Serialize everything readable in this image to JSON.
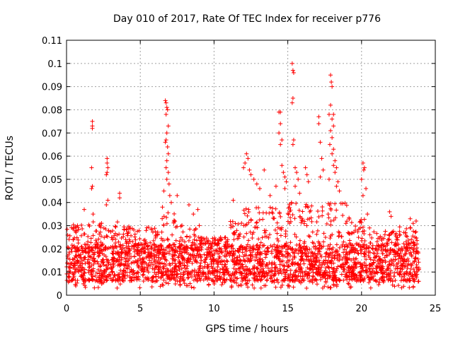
{
  "chart_data": {
    "type": "scatter",
    "title": "Day 010 of 2017, Rate Of TEC Index for receiver p776",
    "xlabel": "GPS time / hours",
    "ylabel": "ROTI / TECUs",
    "xlim": [
      0,
      25
    ],
    "ylim": [
      0,
      0.11
    ],
    "xticks": [
      0,
      5,
      10,
      15,
      20,
      25
    ],
    "xtick_labels": [
      "0",
      "5",
      "10",
      "15",
      "20",
      "25"
    ],
    "yticks": [
      0,
      0.01,
      0.02,
      0.03,
      0.04,
      0.05,
      0.06,
      0.07,
      0.08,
      0.09,
      0.1,
      0.11
    ],
    "ytick_labels": [
      "0",
      "0.01",
      "0.02",
      "0.03",
      "0.04",
      "0.05",
      "0.06",
      "0.07",
      "0.08",
      "0.09",
      "0.1",
      "0.11"
    ],
    "grid": true,
    "marker": "+",
    "color": "#ff0000",
    "series": [
      {
        "name": "ROTI",
        "points": [
          [
            1.75,
            0.075
          ],
          [
            1.75,
            0.073
          ],
          [
            1.75,
            0.072
          ],
          [
            1.7,
            0.055
          ],
          [
            1.75,
            0.047
          ],
          [
            1.7,
            0.046
          ],
          [
            1.8,
            0.035
          ],
          [
            2.75,
            0.059
          ],
          [
            2.75,
            0.057
          ],
          [
            2.8,
            0.055
          ],
          [
            2.75,
            0.053
          ],
          [
            2.7,
            0.052
          ],
          [
            2.8,
            0.041
          ],
          [
            2.7,
            0.039
          ],
          [
            3.6,
            0.044
          ],
          [
            3.6,
            0.042
          ],
          [
            1.2,
            0.037
          ],
          [
            6.7,
            0.084
          ],
          [
            6.75,
            0.083
          ],
          [
            6.8,
            0.081
          ],
          [
            6.85,
            0.08
          ],
          [
            6.75,
            0.078
          ],
          [
            6.9,
            0.073
          ],
          [
            6.8,
            0.07
          ],
          [
            6.75,
            0.067
          ],
          [
            6.7,
            0.066
          ],
          [
            6.85,
            0.064
          ],
          [
            6.9,
            0.061
          ],
          [
            6.8,
            0.058
          ],
          [
            6.75,
            0.055
          ],
          [
            6.9,
            0.053
          ],
          [
            6.8,
            0.05
          ],
          [
            6.95,
            0.048
          ],
          [
            6.6,
            0.045
          ],
          [
            7.0,
            0.043
          ],
          [
            7.1,
            0.04
          ],
          [
            6.5,
            0.038
          ],
          [
            7.5,
            0.043
          ],
          [
            8.3,
            0.039
          ],
          [
            8.9,
            0.037
          ],
          [
            8.6,
            0.035
          ],
          [
            11.3,
            0.041
          ],
          [
            12.0,
            0.055
          ],
          [
            12.2,
            0.061
          ],
          [
            12.3,
            0.059
          ],
          [
            12.1,
            0.057
          ],
          [
            12.4,
            0.054
          ],
          [
            12.5,
            0.052
          ],
          [
            12.7,
            0.05
          ],
          [
            12.9,
            0.048
          ],
          [
            13.1,
            0.046
          ],
          [
            13.4,
            0.054
          ],
          [
            13.8,
            0.043
          ],
          [
            14.4,
            0.079
          ],
          [
            14.5,
            0.079
          ],
          [
            14.5,
            0.074
          ],
          [
            14.4,
            0.07
          ],
          [
            14.6,
            0.067
          ],
          [
            14.5,
            0.065
          ],
          [
            14.6,
            0.056
          ],
          [
            14.7,
            0.053
          ],
          [
            14.8,
            0.051
          ],
          [
            14.9,
            0.049
          ],
          [
            14.2,
            0.047
          ],
          [
            14.8,
            0.046
          ],
          [
            15.3,
            0.1
          ],
          [
            15.35,
            0.097
          ],
          [
            15.4,
            0.096
          ],
          [
            15.35,
            0.085
          ],
          [
            15.3,
            0.083
          ],
          [
            15.4,
            0.067
          ],
          [
            15.35,
            0.065
          ],
          [
            15.5,
            0.055
          ],
          [
            15.6,
            0.053
          ],
          [
            15.7,
            0.05
          ],
          [
            15.5,
            0.047
          ],
          [
            15.8,
            0.044
          ],
          [
            16.2,
            0.055
          ],
          [
            16.3,
            0.052
          ],
          [
            16.4,
            0.049
          ],
          [
            17.1,
            0.077
          ],
          [
            17.1,
            0.074
          ],
          [
            17.2,
            0.066
          ],
          [
            17.3,
            0.059
          ],
          [
            17.4,
            0.054
          ],
          [
            17.2,
            0.051
          ],
          [
            17.9,
            0.095
          ],
          [
            17.95,
            0.092
          ],
          [
            18.0,
            0.09
          ],
          [
            17.9,
            0.082
          ],
          [
            17.8,
            0.078
          ],
          [
            18.1,
            0.078
          ],
          [
            18.0,
            0.076
          ],
          [
            18.1,
            0.073
          ],
          [
            17.9,
            0.071
          ],
          [
            18.0,
            0.068
          ],
          [
            17.85,
            0.065
          ],
          [
            18.1,
            0.063
          ],
          [
            18.0,
            0.061
          ],
          [
            18.2,
            0.058
          ],
          [
            18.1,
            0.056
          ],
          [
            18.3,
            0.055
          ],
          [
            18.2,
            0.053
          ],
          [
            17.8,
            0.05
          ],
          [
            18.4,
            0.049
          ],
          [
            18.3,
            0.047
          ],
          [
            18.5,
            0.045
          ],
          [
            20.1,
            0.057
          ],
          [
            20.2,
            0.055
          ],
          [
            20.15,
            0.054
          ],
          [
            20.0,
            0.05
          ],
          [
            20.3,
            0.046
          ],
          [
            20.1,
            0.043
          ],
          [
            20.4,
            0.035
          ],
          [
            21.9,
            0.036
          ],
          [
            22.0,
            0.034
          ],
          [
            23.3,
            0.033
          ],
          [
            23.5,
            0.031
          ],
          [
            23.7,
            0.032
          ]
        ],
        "dense_band": {
          "x_range": [
            0,
            23.9
          ],
          "typical_range": [
            0.006,
            0.022
          ],
          "segments": [
            {
              "from": 0,
              "to": 1.5,
              "max": 0.031
            },
            {
              "from": 1.5,
              "to": 4,
              "max": 0.032
            },
            {
              "from": 4,
              "to": 6.3,
              "max": 0.03
            },
            {
              "from": 6.3,
              "to": 7.3,
              "max": 0.036
            },
            {
              "from": 7.3,
              "to": 9,
              "max": 0.032
            },
            {
              "from": 9,
              "to": 11,
              "max": 0.025
            },
            {
              "from": 11,
              "to": 12,
              "max": 0.032
            },
            {
              "from": 12,
              "to": 15,
              "max": 0.038
            },
            {
              "from": 15,
              "to": 19,
              "max": 0.04
            },
            {
              "from": 19,
              "to": 21,
              "max": 0.034
            },
            {
              "from": 21,
              "to": 22.5,
              "max": 0.028
            },
            {
              "from": 22.5,
              "to": 23.9,
              "max": 0.03
            }
          ]
        }
      }
    ]
  }
}
